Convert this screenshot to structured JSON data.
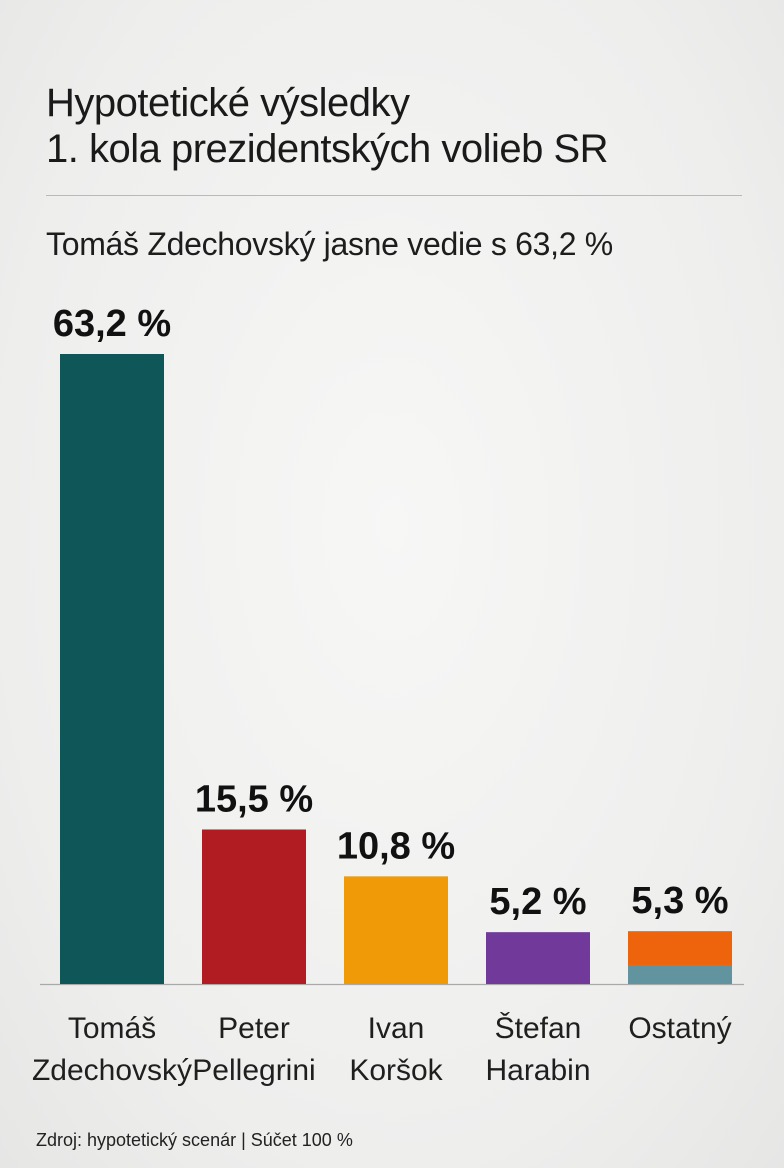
{
  "header": {
    "title_line1": "Hypotetické výsledky",
    "title_line2": "1. kola prezidentských volieb SR",
    "subtitle": "Tomáš Zdechovský jasne vedie s 63,2 %"
  },
  "footer": {
    "source": "Zdroj: hypotetický scenár | Súčet 100 %"
  },
  "chart_data": {
    "type": "bar",
    "title": "Hypotetické výsledky 1. kola prezidentských volieb SR",
    "subtitle": "Tomáš Zdechovský jasne vedie s 63,2 %",
    "unit": "%",
    "grid": false,
    "legend": "none",
    "ylim": [
      0,
      63.2
    ],
    "categories": [
      [
        "Tomáš",
        "Zdechovský"
      ],
      [
        "Peter",
        "Pellegrini"
      ],
      [
        "Ivan",
        "Koršok"
      ],
      [
        "Štefan",
        "Harabin"
      ],
      [
        "Ostatný"
      ]
    ],
    "values": [
      63.2,
      15.5,
      10.8,
      5.2,
      5.3
    ],
    "value_labels": [
      "63,2 %",
      "15,5 %",
      "10,8 %",
      "5,2 %",
      "5,3 %"
    ],
    "colors": [
      "#0f5658",
      "#b01c22",
      "#f09a08",
      "#70399a",
      "#ee640c"
    ],
    "last_bar_base_color": "#62949f"
  }
}
